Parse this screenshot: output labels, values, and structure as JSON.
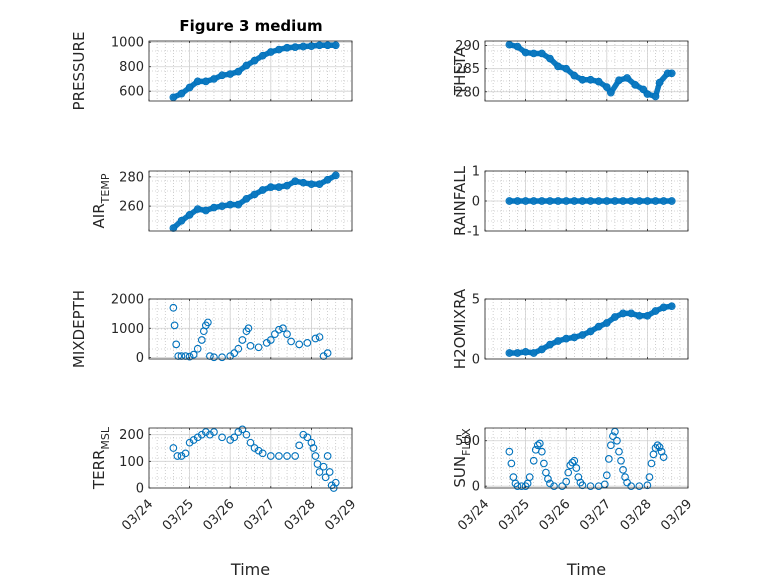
{
  "figure": {
    "title": "Figure 3 medium"
  },
  "colors": {
    "marker": "#0072BD",
    "axis": "#262626",
    "grid": "#b0b0b0",
    "frame": "#262626"
  },
  "chart_data": [
    {
      "type": "scatter",
      "title": "Figure 3 medium",
      "ylabel": "PRESSURE",
      "ylabel_sub": null,
      "xlabel": "",
      "ylim": [
        520,
        1010
      ],
      "yticks": [
        600,
        800,
        1000
      ],
      "ytick_labels": [
        "600",
        "800",
        "1000"
      ],
      "xlim": [
        24,
        29
      ],
      "xticks": [
        24,
        25,
        26,
        27,
        28,
        29
      ],
      "xtick_labels": [],
      "grid": true,
      "minor_grid": true,
      "points": [
        [
          24.6,
          550
        ],
        [
          24.8,
          580
        ],
        [
          25,
          630
        ],
        [
          25.2,
          680
        ],
        [
          25.4,
          680
        ],
        [
          25.6,
          700
        ],
        [
          25.8,
          730
        ],
        [
          26.0,
          740
        ],
        [
          26.2,
          760
        ],
        [
          26.4,
          810
        ],
        [
          26.6,
          850
        ],
        [
          26.8,
          890
        ],
        [
          27.0,
          920
        ],
        [
          27.2,
          940
        ],
        [
          27.4,
          955
        ],
        [
          27.6,
          960
        ],
        [
          27.8,
          965
        ],
        [
          28.0,
          968
        ],
        [
          28.2,
          975
        ],
        [
          28.4,
          975
        ],
        [
          28.6,
          975
        ]
      ]
    },
    {
      "type": "scatter",
      "title": "",
      "ylabel": "THETA",
      "ylabel_sub": null,
      "xlabel": "",
      "ylim": [
        278,
        291
      ],
      "yticks": [
        280,
        285,
        290
      ],
      "ytick_labels": [
        "280",
        "285",
        "290"
      ],
      "xlim": [
        24,
        29
      ],
      "xticks": [
        24,
        25,
        26,
        27,
        28,
        29
      ],
      "xtick_labels": [],
      "grid": true,
      "minor_grid": true,
      "points": [
        [
          24.6,
          290.2
        ],
        [
          24.8,
          289.8
        ],
        [
          25.0,
          288.5
        ],
        [
          25.2,
          288.3
        ],
        [
          25.4,
          288.3
        ],
        [
          25.6,
          287.2
        ],
        [
          25.8,
          285.5
        ],
        [
          26.0,
          285.0
        ],
        [
          26.2,
          283.5
        ],
        [
          26.4,
          282.6
        ],
        [
          26.6,
          282.6
        ],
        [
          26.8,
          282.2
        ],
        [
          27.0,
          281.0
        ],
        [
          27.1,
          279.8
        ],
        [
          27.3,
          282.5
        ],
        [
          27.5,
          283.0
        ],
        [
          27.7,
          281.5
        ],
        [
          27.9,
          280.5
        ],
        [
          28.0,
          279.5
        ],
        [
          28.2,
          279.0
        ],
        [
          28.3,
          282.0
        ],
        [
          28.5,
          284.0
        ],
        [
          28.6,
          284.0
        ]
      ]
    },
    {
      "type": "scatter",
      "title": "",
      "ylabel": "AIR",
      "ylabel_sub": "TEMP",
      "xlabel": "",
      "ylim": [
        243,
        284
      ],
      "yticks": [
        260,
        280
      ],
      "ytick_labels": [
        "260",
        "280"
      ],
      "xlim": [
        24,
        29
      ],
      "xticks": [
        24,
        25,
        26,
        27,
        28,
        29
      ],
      "xtick_labels": [],
      "grid": true,
      "minor_grid": true,
      "points": [
        [
          24.6,
          245
        ],
        [
          24.8,
          250
        ],
        [
          25.0,
          254
        ],
        [
          25.2,
          258
        ],
        [
          25.4,
          257
        ],
        [
          25.6,
          259
        ],
        [
          25.8,
          260
        ],
        [
          26.0,
          261
        ],
        [
          26.2,
          261
        ],
        [
          26.4,
          265
        ],
        [
          26.6,
          268
        ],
        [
          26.8,
          271
        ],
        [
          27.0,
          273
        ],
        [
          27.2,
          273
        ],
        [
          27.4,
          274
        ],
        [
          27.6,
          277
        ],
        [
          27.8,
          276
        ],
        [
          28.0,
          275
        ],
        [
          28.2,
          275
        ],
        [
          28.4,
          278
        ],
        [
          28.6,
          281
        ]
      ]
    },
    {
      "type": "scatter",
      "title": "",
      "ylabel": "RAINFALL",
      "ylabel_sub": null,
      "xlabel": "",
      "ylim": [
        -1,
        1
      ],
      "yticks": [
        -1,
        0,
        1
      ],
      "ytick_labels": [
        "-1",
        "0",
        "1"
      ],
      "xlim": [
        24,
        29
      ],
      "xticks": [
        24,
        25,
        26,
        27,
        28,
        29
      ],
      "xtick_labels": [],
      "grid": true,
      "minor_grid": true,
      "points": [
        [
          24.6,
          0
        ],
        [
          24.8,
          0
        ],
        [
          25.0,
          0
        ],
        [
          25.2,
          0
        ],
        [
          25.4,
          0
        ],
        [
          25.6,
          0
        ],
        [
          25.8,
          0
        ],
        [
          26.0,
          0
        ],
        [
          26.2,
          0
        ],
        [
          26.4,
          0
        ],
        [
          26.6,
          0
        ],
        [
          26.8,
          0
        ],
        [
          27.0,
          0
        ],
        [
          27.2,
          0
        ],
        [
          27.4,
          0
        ],
        [
          27.6,
          0
        ],
        [
          27.8,
          0
        ],
        [
          28.0,
          0
        ],
        [
          28.2,
          0
        ],
        [
          28.4,
          0
        ],
        [
          28.6,
          0
        ]
      ]
    },
    {
      "type": "scatter",
      "title": "",
      "ylabel": "MIXDEPTH",
      "ylabel_sub": null,
      "xlabel": "",
      "ylim": [
        -50,
        2000
      ],
      "yticks": [
        0,
        1000,
        2000
      ],
      "ytick_labels": [
        "0",
        "1000",
        "2000"
      ],
      "xlim": [
        24,
        29
      ],
      "xticks": [
        24,
        25,
        26,
        27,
        28,
        29
      ],
      "xtick_labels": [],
      "grid": true,
      "minor_grid": true,
      "points": [
        [
          24.6,
          1700
        ],
        [
          24.63,
          1100
        ],
        [
          24.67,
          450
        ],
        [
          24.72,
          50
        ],
        [
          24.8,
          50
        ],
        [
          24.9,
          50
        ],
        [
          25.0,
          30
        ],
        [
          25.1,
          100
        ],
        [
          25.2,
          300
        ],
        [
          25.3,
          600
        ],
        [
          25.35,
          900
        ],
        [
          25.4,
          1100
        ],
        [
          25.45,
          1200
        ],
        [
          25.5,
          50
        ],
        [
          25.6,
          10
        ],
        [
          25.8,
          10
        ],
        [
          26.0,
          50
        ],
        [
          26.1,
          150
        ],
        [
          26.2,
          300
        ],
        [
          26.3,
          600
        ],
        [
          26.4,
          900
        ],
        [
          26.45,
          1000
        ],
        [
          26.5,
          400
        ],
        [
          26.7,
          350
        ],
        [
          26.9,
          500
        ],
        [
          27.0,
          600
        ],
        [
          27.1,
          800
        ],
        [
          27.2,
          950
        ],
        [
          27.3,
          1000
        ],
        [
          27.4,
          800
        ],
        [
          27.5,
          550
        ],
        [
          27.7,
          450
        ],
        [
          27.9,
          500
        ],
        [
          28.1,
          650
        ],
        [
          28.2,
          700
        ],
        [
          28.3,
          50
        ],
        [
          28.4,
          150
        ]
      ]
    },
    {
      "type": "scatter",
      "title": "",
      "ylabel": "H2OMIXRA",
      "ylabel_sub": null,
      "xlabel": "",
      "ylim": [
        0,
        5
      ],
      "yticks": [
        0,
        5
      ],
      "ytick_labels": [
        "0",
        "5"
      ],
      "xlim": [
        24,
        29
      ],
      "xticks": [
        24,
        25,
        26,
        27,
        28,
        29
      ],
      "xtick_labels": [],
      "grid": true,
      "minor_grid": true,
      "points": [
        [
          24.6,
          0.5
        ],
        [
          24.8,
          0.5
        ],
        [
          25.0,
          0.6
        ],
        [
          25.2,
          0.5
        ],
        [
          25.4,
          0.8
        ],
        [
          25.6,
          1.2
        ],
        [
          25.8,
          1.5
        ],
        [
          26.0,
          1.7
        ],
        [
          26.2,
          1.8
        ],
        [
          26.4,
          2.0
        ],
        [
          26.6,
          2.3
        ],
        [
          26.8,
          2.7
        ],
        [
          27.0,
          3.0
        ],
        [
          27.2,
          3.5
        ],
        [
          27.4,
          3.8
        ],
        [
          27.6,
          3.8
        ],
        [
          27.8,
          3.6
        ],
        [
          28.0,
          3.6
        ],
        [
          28.2,
          4.0
        ],
        [
          28.4,
          4.3
        ],
        [
          28.6,
          4.4
        ]
      ]
    },
    {
      "type": "scatter",
      "title": "",
      "ylabel": "TERR",
      "ylabel_sub": "MSL",
      "xlabel": "Time",
      "ylim": [
        0,
        225
      ],
      "yticks": [
        0,
        100,
        200
      ],
      "ytick_labels": [
        "0",
        "100",
        "200"
      ],
      "xlim": [
        24,
        29
      ],
      "xticks": [
        24,
        25,
        26,
        27,
        28,
        29
      ],
      "xtick_labels": [
        "03/24",
        "03/25",
        "03/26",
        "03/27",
        "03/28",
        "03/29"
      ],
      "grid": true,
      "minor_grid": true,
      "points": [
        [
          24.6,
          150
        ],
        [
          24.7,
          120
        ],
        [
          24.8,
          120
        ],
        [
          24.9,
          130
        ],
        [
          25.0,
          170
        ],
        [
          25.1,
          180
        ],
        [
          25.2,
          190
        ],
        [
          25.3,
          200
        ],
        [
          25.4,
          210
        ],
        [
          25.5,
          200
        ],
        [
          25.6,
          210
        ],
        [
          25.8,
          190
        ],
        [
          26.0,
          180
        ],
        [
          26.1,
          190
        ],
        [
          26.2,
          210
        ],
        [
          26.3,
          220
        ],
        [
          26.4,
          200
        ],
        [
          26.5,
          170
        ],
        [
          26.6,
          150
        ],
        [
          26.7,
          140
        ],
        [
          26.8,
          130
        ],
        [
          27.0,
          120
        ],
        [
          27.2,
          120
        ],
        [
          27.4,
          120
        ],
        [
          27.6,
          120
        ],
        [
          27.7,
          160
        ],
        [
          27.8,
          200
        ],
        [
          27.9,
          190
        ],
        [
          28.0,
          170
        ],
        [
          28.05,
          150
        ],
        [
          28.1,
          120
        ],
        [
          28.15,
          90
        ],
        [
          28.2,
          60
        ],
        [
          28.3,
          80
        ],
        [
          28.35,
          40
        ],
        [
          28.4,
          120
        ],
        [
          28.45,
          60
        ],
        [
          28.5,
          10
        ],
        [
          28.55,
          0
        ],
        [
          28.6,
          20
        ]
      ]
    },
    {
      "type": "scatter",
      "title": "",
      "ylabel": "SUN",
      "ylabel_sub": "FLUX",
      "xlabel": "Time",
      "ylim": [
        -20,
        640
      ],
      "yticks": [
        0,
        500
      ],
      "ytick_labels": [
        "0",
        "500"
      ],
      "xlim": [
        24,
        29
      ],
      "xticks": [
        24,
        25,
        26,
        27,
        28,
        29
      ],
      "xtick_labels": [
        "03/24",
        "03/25",
        "03/26",
        "03/27",
        "03/28",
        "03/29"
      ],
      "grid": true,
      "minor_grid": true,
      "points": [
        [
          24.6,
          380
        ],
        [
          24.65,
          250
        ],
        [
          24.7,
          100
        ],
        [
          24.75,
          30
        ],
        [
          24.8,
          0
        ],
        [
          24.9,
          0
        ],
        [
          25.0,
          0
        ],
        [
          25.05,
          30
        ],
        [
          25.1,
          100
        ],
        [
          25.2,
          280
        ],
        [
          25.25,
          400
        ],
        [
          25.3,
          450
        ],
        [
          25.35,
          470
        ],
        [
          25.4,
          380
        ],
        [
          25.45,
          250
        ],
        [
          25.5,
          150
        ],
        [
          25.55,
          80
        ],
        [
          25.6,
          30
        ],
        [
          25.7,
          0
        ],
        [
          25.9,
          0
        ],
        [
          26.0,
          50
        ],
        [
          26.05,
          150
        ],
        [
          26.1,
          230
        ],
        [
          26.15,
          260
        ],
        [
          26.2,
          280
        ],
        [
          26.25,
          200
        ],
        [
          26.3,
          100
        ],
        [
          26.35,
          40
        ],
        [
          26.4,
          10
        ],
        [
          26.6,
          0
        ],
        [
          26.8,
          0
        ],
        [
          26.95,
          20
        ],
        [
          27.0,
          120
        ],
        [
          27.05,
          300
        ],
        [
          27.1,
          450
        ],
        [
          27.15,
          550
        ],
        [
          27.2,
          600
        ],
        [
          27.25,
          500
        ],
        [
          27.3,
          380
        ],
        [
          27.35,
          280
        ],
        [
          27.4,
          180
        ],
        [
          27.45,
          100
        ],
        [
          27.5,
          40
        ],
        [
          27.6,
          0
        ],
        [
          27.8,
          0
        ],
        [
          28.0,
          10
        ],
        [
          28.05,
          100
        ],
        [
          28.1,
          250
        ],
        [
          28.15,
          350
        ],
        [
          28.2,
          420
        ],
        [
          28.25,
          450
        ],
        [
          28.3,
          430
        ],
        [
          28.35,
          380
        ],
        [
          28.4,
          320
        ]
      ]
    }
  ]
}
